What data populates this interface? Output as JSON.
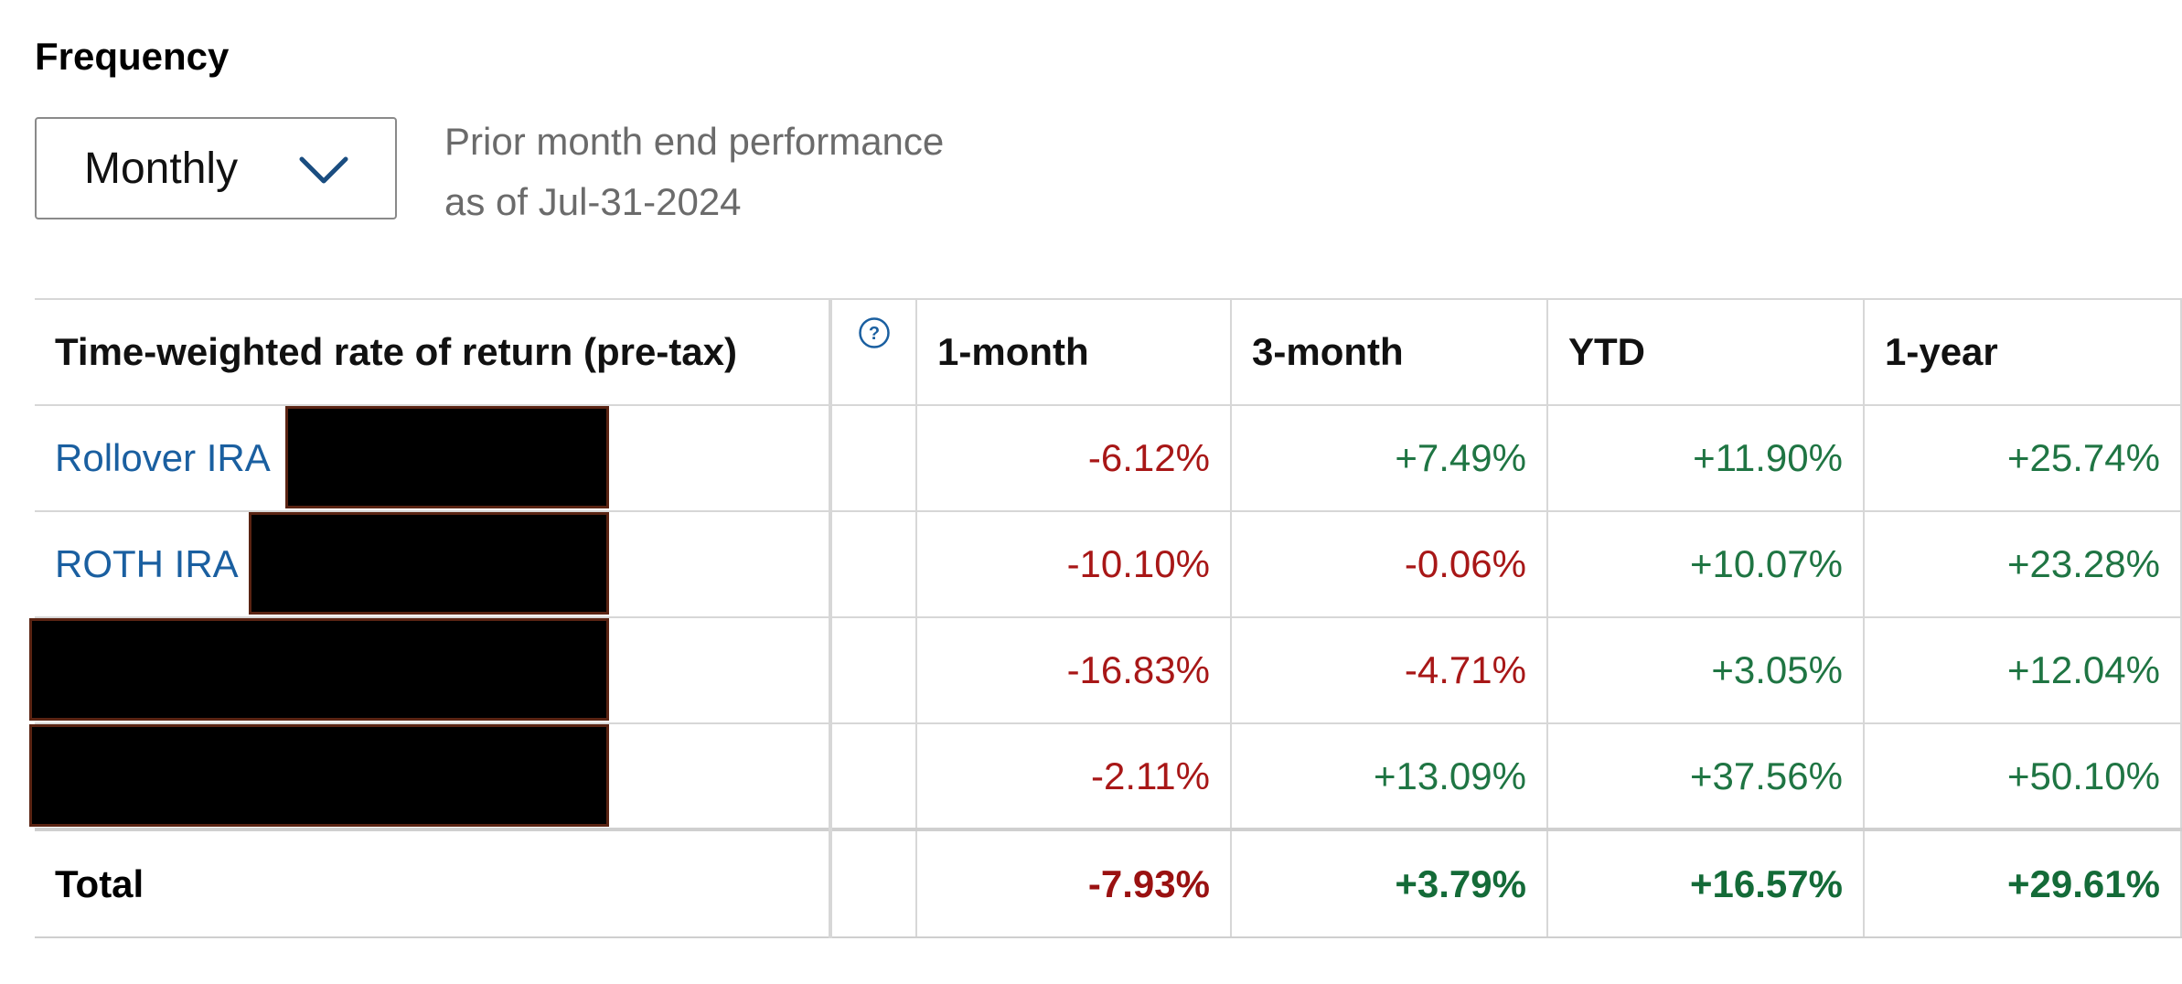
{
  "frequency": {
    "label": "Frequency",
    "selected": "Monthly",
    "icon": "chevron-down-icon"
  },
  "as_of": {
    "line1": "Prior month end performance",
    "line2": "as of Jul-31-2024"
  },
  "table": {
    "headers": {
      "name": "Time-weighted rate of return (pre-tax)",
      "help_icon": "question-circle-icon",
      "m1": "1-month",
      "m3": "3-month",
      "ytd": "YTD",
      "y1": "1-year"
    },
    "rows": [
      {
        "name": "Rollover IRA",
        "m1": "-6.12%",
        "m3": "+7.49%",
        "ytd": "+11.90%",
        "y1": "+25.74%"
      },
      {
        "name": "ROTH IRA",
        "m1": "-10.10%",
        "m3": "-0.06%",
        "ytd": "+10.07%",
        "y1": "+23.28%"
      },
      {
        "name": "",
        "m1": "-16.83%",
        "m3": "-4.71%",
        "ytd": "+3.05%",
        "y1": "+12.04%"
      },
      {
        "name": "",
        "m1": "-2.11%",
        "m3": "+13.09%",
        "ytd": "+37.56%",
        "y1": "+50.10%"
      }
    ],
    "total": {
      "label": "Total",
      "m1": "-7.93%",
      "m3": "+3.79%",
      "ytd": "+16.57%",
      "y1": "+29.61%"
    }
  },
  "colors": {
    "negative": "#a81717",
    "positive": "#1f7543",
    "link": "#1a5fa0",
    "muted_text": "#6b6b6b",
    "border": "#d7d7d7",
    "redaction": "#000000"
  }
}
